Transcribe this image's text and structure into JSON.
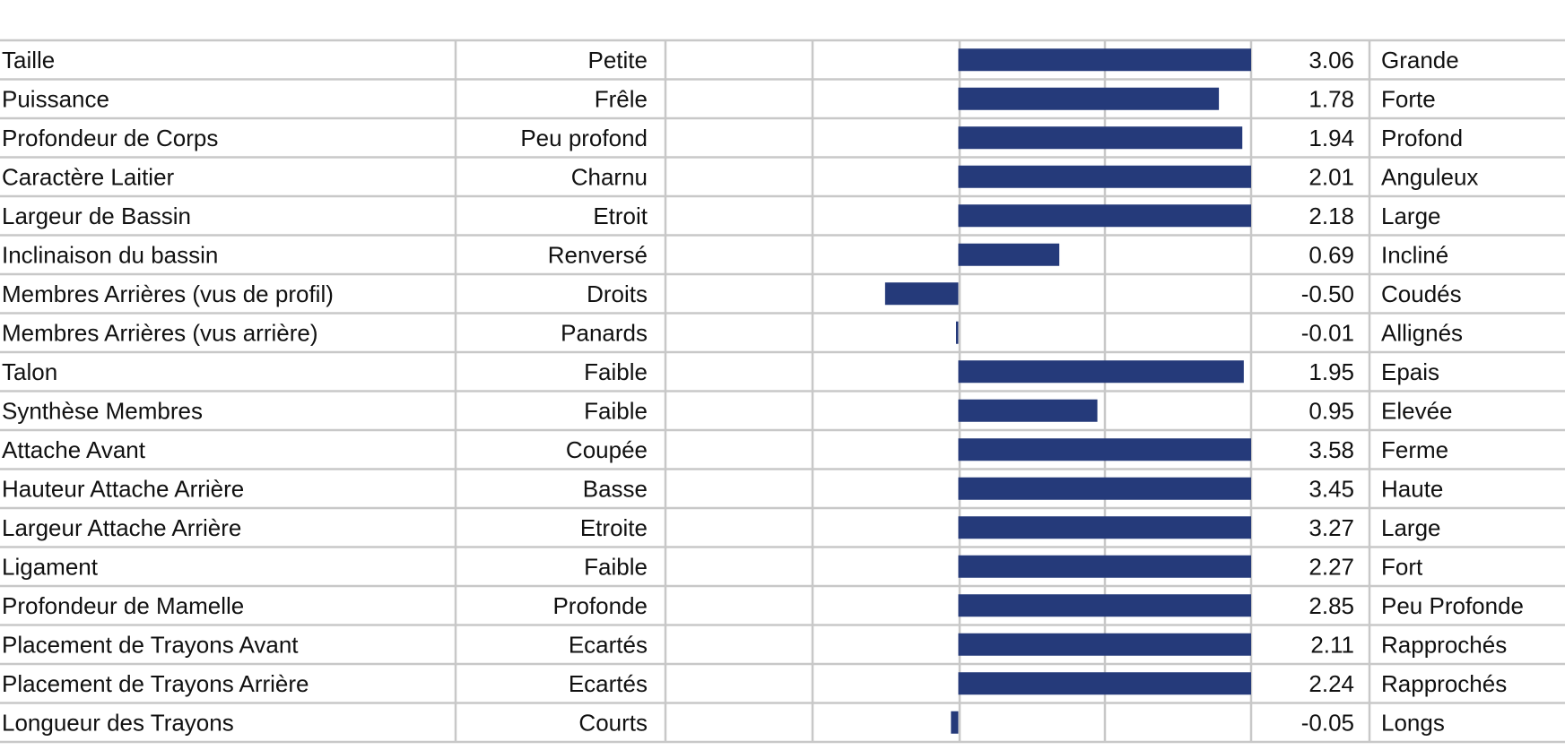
{
  "chart_data": {
    "type": "bar",
    "orientation": "horizontal",
    "xlim": [
      -2,
      2
    ],
    "grid": true,
    "bar_color": "#253a7a",
    "grid_color": "#c8c8c8",
    "rows": [
      {
        "trait": "Taille",
        "low": "Petite",
        "value": 3.06,
        "value_label": "3.06",
        "high": "Grande"
      },
      {
        "trait": "Puissance",
        "low": "Frêle",
        "value": 1.78,
        "value_label": "1.78",
        "high": "Forte"
      },
      {
        "trait": "Profondeur de Corps",
        "low": "Peu profond",
        "value": 1.94,
        "value_label": "1.94",
        "high": "Profond"
      },
      {
        "trait": "Caractère Laitier",
        "low": "Charnu",
        "value": 2.01,
        "value_label": "2.01",
        "high": "Anguleux"
      },
      {
        "trait": "Largeur de Bassin",
        "low": "Etroit",
        "value": 2.18,
        "value_label": "2.18",
        "high": "Large"
      },
      {
        "trait": "Inclinaison du bassin",
        "low": "Renversé",
        "value": 0.69,
        "value_label": "0.69",
        "high": "Incliné"
      },
      {
        "trait": "Membres Arrières (vus de profil)",
        "low": "Droits",
        "value": -0.5,
        "value_label": "-0.50",
        "high": "Coudés"
      },
      {
        "trait": "Membres Arrières (vus arrière)",
        "low": "Panards",
        "value": -0.01,
        "value_label": "-0.01",
        "high": "Allignés"
      },
      {
        "trait": "Talon",
        "low": "Faible",
        "value": 1.95,
        "value_label": "1.95",
        "high": "Epais"
      },
      {
        "trait": "Synthèse Membres",
        "low": "Faible",
        "value": 0.95,
        "value_label": "0.95",
        "high": "Elevée"
      },
      {
        "trait": "Attache Avant",
        "low": "Coupée",
        "value": 3.58,
        "value_label": "3.58",
        "high": "Ferme"
      },
      {
        "trait": "Hauteur Attache Arrière",
        "low": "Basse",
        "value": 3.45,
        "value_label": "3.45",
        "high": "Haute"
      },
      {
        "trait": "Largeur Attache Arrière",
        "low": "Etroite",
        "value": 3.27,
        "value_label": "3.27",
        "high": "Large"
      },
      {
        "trait": "Ligament",
        "low": "Faible",
        "value": 2.27,
        "value_label": "2.27",
        "high": "Fort"
      },
      {
        "trait": "Profondeur de Mamelle",
        "low": "Profonde",
        "value": 2.85,
        "value_label": "2.85",
        "high": "Peu Profonde"
      },
      {
        "trait": "Placement de Trayons Avant",
        "low": "Ecartés",
        "value": 2.11,
        "value_label": "2.11",
        "high": "Rapprochés"
      },
      {
        "trait": "Placement de Trayons Arrière",
        "low": "Ecartés",
        "value": 2.24,
        "value_label": "2.24",
        "high": "Rapprochés"
      },
      {
        "trait": "Longueur des Trayons",
        "low": "Courts",
        "value": -0.05,
        "value_label": "-0.05",
        "high": "Longs"
      }
    ]
  }
}
